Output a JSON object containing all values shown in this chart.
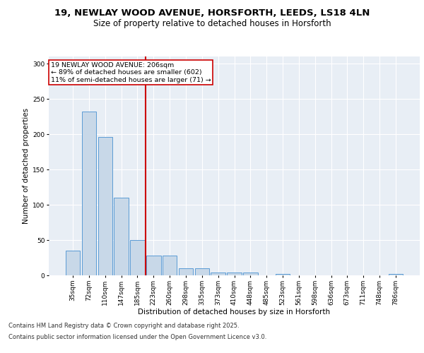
{
  "title_line1": "19, NEWLAY WOOD AVENUE, HORSFORTH, LEEDS, LS18 4LN",
  "title_line2": "Size of property relative to detached houses in Horsforth",
  "xlabel": "Distribution of detached houses by size in Horsforth",
  "ylabel": "Number of detached properties",
  "categories": [
    "35sqm",
    "72sqm",
    "110sqm",
    "147sqm",
    "185sqm",
    "223sqm",
    "260sqm",
    "298sqm",
    "335sqm",
    "373sqm",
    "410sqm",
    "448sqm",
    "485sqm",
    "523sqm",
    "561sqm",
    "598sqm",
    "636sqm",
    "673sqm",
    "711sqm",
    "748sqm",
    "786sqm"
  ],
  "values": [
    35,
    232,
    196,
    110,
    50,
    28,
    28,
    10,
    10,
    4,
    4,
    4,
    0,
    2,
    0,
    0,
    0,
    0,
    0,
    0,
    2
  ],
  "bar_color": "#c8d8e8",
  "bar_edge_color": "#5b9bd5",
  "vline_color": "#cc0000",
  "annotation_text": "19 NEWLAY WOOD AVENUE: 206sqm\n← 89% of detached houses are smaller (602)\n11% of semi-detached houses are larger (71) →",
  "annotation_box_color": "#ffffff",
  "annotation_box_edge": "#cc0000",
  "annotation_fontsize": 6.8,
  "ylim": [
    0,
    310
  ],
  "yticks": [
    0,
    50,
    100,
    150,
    200,
    250,
    300
  ],
  "background_color": "#e8eef5",
  "grid_color": "#ffffff",
  "footer_line1": "Contains HM Land Registry data © Crown copyright and database right 2025.",
  "footer_line2": "Contains public sector information licensed under the Open Government Licence v3.0.",
  "title_fontsize": 9.5,
  "subtitle_fontsize": 8.5,
  "axis_label_fontsize": 7.5,
  "tick_fontsize": 6.5
}
